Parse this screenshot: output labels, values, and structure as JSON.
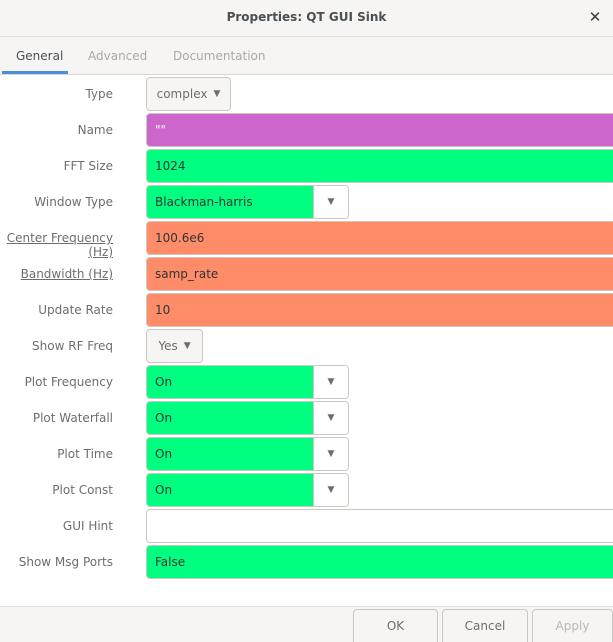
{
  "window": {
    "title": "Properties: QT GUI Sink"
  },
  "tabs": [
    {
      "label": "General"
    },
    {
      "label": "Advanced"
    },
    {
      "label": "Documentation"
    }
  ],
  "fields": {
    "type": {
      "label": "Type",
      "value": "complex"
    },
    "name": {
      "label": "Name",
      "value": "\"\""
    },
    "fft_size": {
      "label": "FFT Size",
      "value": "1024"
    },
    "window_type": {
      "label": "Window Type",
      "value": "Blackman-harris"
    },
    "center_frequency": {
      "label": "Center Frequency (Hz)",
      "value": "100.6e6"
    },
    "bandwidth": {
      "label": "Bandwidth (Hz)",
      "value": "samp_rate"
    },
    "update_rate": {
      "label": "Update Rate",
      "value": "10"
    },
    "show_rf_freq": {
      "label": "Show RF Freq",
      "value": "Yes"
    },
    "plot_frequency": {
      "label": "Plot Frequency",
      "value": "On"
    },
    "plot_waterfall": {
      "label": "Plot Waterfall",
      "value": "On"
    },
    "plot_time": {
      "label": "Plot Time",
      "value": "On"
    },
    "plot_const": {
      "label": "Plot Const",
      "value": "On"
    },
    "gui_hint": {
      "label": "GUI Hint",
      "value": ""
    },
    "show_msg_ports": {
      "label": "Show Msg Ports",
      "value": "False"
    }
  },
  "footer": {
    "ok": "OK",
    "cancel": "Cancel",
    "apply": "Apply"
  },
  "colors": {
    "enum": "#00ff80",
    "real": "#ff8c69",
    "string": "#cc66cc",
    "accent": "#4a90d9"
  }
}
